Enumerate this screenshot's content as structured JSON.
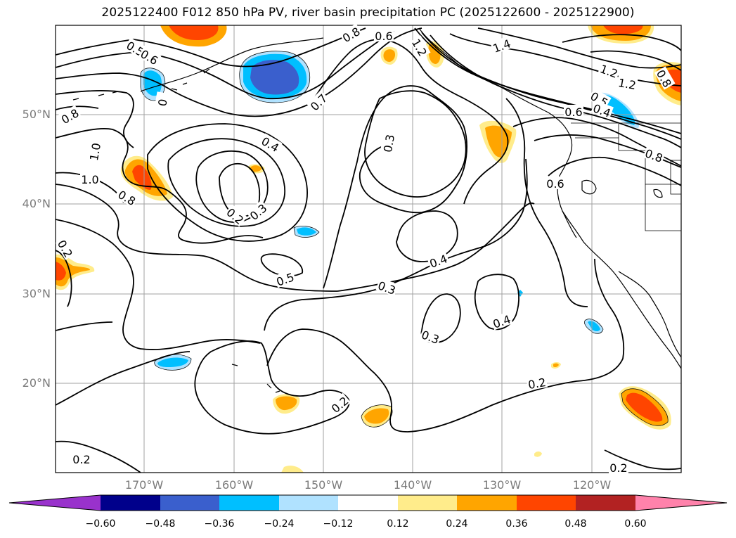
{
  "title": "2025122400 F012 850 hPa PV, river basin precipitation PC (2025122600 - 2025122900)",
  "lon_ticks": [
    "170°W",
    "160°W",
    "150°W",
    "140°W",
    "130°W",
    "120°W"
  ],
  "lat_ticks": [
    "50°N",
    "40°N",
    "30°N",
    "20°N"
  ],
  "colorbar": {
    "labels": [
      "−0.60",
      "−0.48",
      "−0.36",
      "−0.24",
      "−0.12",
      "0.12",
      "0.24",
      "0.36",
      "0.48",
      "0.60"
    ],
    "colors": [
      "#9932cc",
      "#00008b",
      "#3a5fcd",
      "#00bfff",
      "#b0e2ff",
      "#ffffff",
      "#ffec8b",
      "#ffa500",
      "#ff4500",
      "#b22222",
      "#ff82ab"
    ]
  },
  "contour_labels": [
    {
      "text": "0.5"
    },
    {
      "text": "0.6"
    },
    {
      "text": "0"
    },
    {
      "text": "1.0"
    },
    {
      "text": "0.8"
    },
    {
      "text": "0.7"
    },
    {
      "text": "0.8"
    },
    {
      "text": "0.6"
    },
    {
      "text": "1.2"
    },
    {
      "text": "1.4"
    },
    {
      "text": "1.2"
    },
    {
      "text": "1.2"
    },
    {
      "text": "0.8"
    },
    {
      "text": "0.5"
    },
    {
      "text": "0.6"
    },
    {
      "text": "0.4"
    },
    {
      "text": "0.8"
    },
    {
      "text": "1.0"
    },
    {
      "text": "0.8"
    },
    {
      "text": "0.7"
    },
    {
      "text": "0.4"
    },
    {
      "text": "0.3"
    },
    {
      "text": "0.2"
    },
    {
      "text": "0.3"
    },
    {
      "text": "0.6"
    },
    {
      "text": "0.4"
    },
    {
      "text": "0.5"
    },
    {
      "text": "0.3"
    },
    {
      "text": "0.4"
    },
    {
      "text": "0.3"
    },
    {
      "text": "0.2"
    },
    {
      "text": "0.2"
    },
    {
      "text": "0.2"
    },
    {
      "text": "0.2"
    },
    {
      "text": "0.2"
    }
  ]
}
